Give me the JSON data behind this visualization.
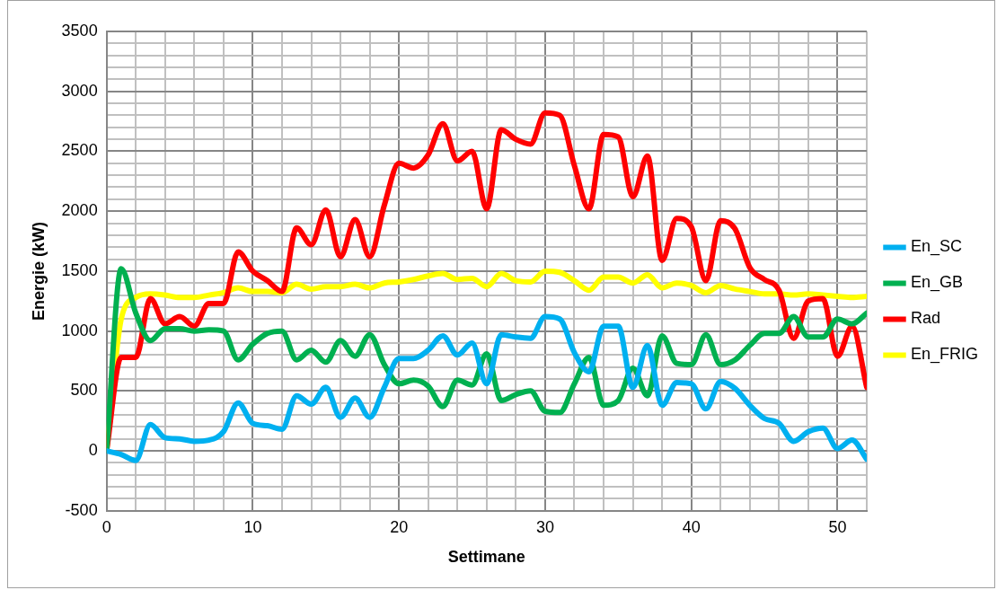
{
  "chart_data": {
    "type": "line",
    "xlabel": "Settimane",
    "ylabel": "Energie (kW)",
    "x": [
      0,
      1,
      2,
      3,
      4,
      5,
      6,
      7,
      8,
      9,
      10,
      11,
      12,
      13,
      14,
      15,
      16,
      17,
      18,
      19,
      20,
      21,
      22,
      23,
      24,
      25,
      26,
      27,
      28,
      29,
      30,
      31,
      32,
      33,
      34,
      35,
      36,
      37,
      38,
      39,
      40,
      41,
      42,
      43,
      44,
      45,
      46,
      47,
      48,
      49,
      50,
      51,
      52
    ],
    "xlim": [
      0,
      52
    ],
    "xticks": [
      0,
      {
        "value": 2,
        "label": null
      },
      {
        "value": 4,
        "label": null
      },
      {
        "value": 6,
        "label": null
      },
      {
        "value": 8,
        "label": null
      },
      10,
      {
        "value": 12,
        "label": null
      },
      {
        "value": 14,
        "label": null
      },
      {
        "value": 16,
        "label": null
      },
      {
        "value": 18,
        "label": null
      },
      20,
      {
        "value": 22,
        "label": null
      },
      {
        "value": 24,
        "label": null
      },
      {
        "value": 26,
        "label": null
      },
      {
        "value": 28,
        "label": null
      },
      30,
      {
        "value": 32,
        "label": null
      },
      {
        "value": 34,
        "label": null
      },
      {
        "value": 36,
        "label": null
      },
      {
        "value": 38,
        "label": null
      },
      40,
      {
        "value": 42,
        "label": null
      },
      {
        "value": 44,
        "label": null
      },
      {
        "value": 46,
        "label": null
      },
      {
        "value": 48,
        "label": null
      },
      50,
      {
        "value": 52,
        "label": null
      }
    ],
    "ylim": [
      -500,
      3500
    ],
    "yticks": [
      -500,
      {
        "value": -400,
        "label": null
      },
      {
        "value": -300,
        "label": null
      },
      {
        "value": -200,
        "label": null
      },
      {
        "value": -100,
        "label": null
      },
      0,
      {
        "value": 100,
        "label": null
      },
      {
        "value": 200,
        "label": null
      },
      {
        "value": 300,
        "label": null
      },
      {
        "value": 400,
        "label": null
      },
      500,
      {
        "value": 600,
        "label": null
      },
      {
        "value": 700,
        "label": null
      },
      {
        "value": 800,
        "label": null
      },
      {
        "value": 900,
        "label": null
      },
      1000,
      {
        "value": 1100,
        "label": null
      },
      {
        "value": 1200,
        "label": null
      },
      {
        "value": 1300,
        "label": null
      },
      {
        "value": 1400,
        "label": null
      },
      1500,
      {
        "value": 1600,
        "label": null
      },
      {
        "value": 1700,
        "label": null
      },
      {
        "value": 1800,
        "label": null
      },
      {
        "value": 1900,
        "label": null
      },
      2000,
      {
        "value": 2100,
        "label": null
      },
      {
        "value": 2200,
        "label": null
      },
      {
        "value": 2300,
        "label": null
      },
      {
        "value": 2400,
        "label": null
      },
      2500,
      {
        "value": 2600,
        "label": null
      },
      {
        "value": 2700,
        "label": null
      },
      {
        "value": 2800,
        "label": null
      },
      {
        "value": 2900,
        "label": null
      },
      3000,
      {
        "value": 3100,
        "label": null
      },
      {
        "value": 3200,
        "label": null
      },
      {
        "value": 3300,
        "label": null
      },
      {
        "value": 3400,
        "label": null
      },
      3500
    ],
    "grid": true,
    "legend": "right",
    "marker": "none",
    "line_style": "solid",
    "series": [
      {
        "name": "En_SC",
        "color": "#00b0f0",
        "values": [
          0,
          -30,
          -80,
          220,
          110,
          100,
          80,
          90,
          160,
          400,
          230,
          210,
          180,
          460,
          390,
          530,
          280,
          440,
          280,
          530,
          770,
          770,
          840,
          960,
          800,
          900,
          560,
          970,
          950,
          940,
          1120,
          1100,
          820,
          660,
          1040,
          1040,
          530,
          880,
          380,
          570,
          560,
          350,
          580,
          520,
          380,
          270,
          230,
          80,
          160,
          190,
          20,
          90,
          -70
        ]
      },
      {
        "name": "En_GB",
        "color": "#00b050",
        "values": [
          0,
          1520,
          1150,
          920,
          1020,
          1020,
          1000,
          1010,
          1000,
          760,
          890,
          980,
          1000,
          760,
          840,
          740,
          920,
          790,
          970,
          720,
          560,
          590,
          540,
          370,
          590,
          550,
          810,
          420,
          470,
          500,
          330,
          320,
          560,
          780,
          380,
          420,
          690,
          460,
          960,
          730,
          720,
          970,
          720,
          760,
          880,
          980,
          980,
          1120,
          950,
          950,
          1100,
          1060,
          1150
        ]
      },
      {
        "name": "Rad",
        "color": "#ff0000",
        "values": [
          0,
          780,
          780,
          1270,
          1060,
          1120,
          1040,
          1230,
          1230,
          1660,
          1500,
          1420,
          1330,
          1860,
          1720,
          2010,
          1620,
          1930,
          1620,
          2050,
          2400,
          2360,
          2470,
          2730,
          2420,
          2500,
          2020,
          2680,
          2600,
          2560,
          2820,
          2800,
          2380,
          2020,
          2640,
          2620,
          2120,
          2460,
          1590,
          1940,
          1870,
          1420,
          1920,
          1850,
          1530,
          1430,
          1340,
          940,
          1250,
          1270,
          790,
          1040,
          530
        ]
      },
      {
        "name": "En_FRIG",
        "color": "#ffff00",
        "values": [
          0,
          1100,
          1280,
          1310,
          1300,
          1280,
          1280,
          1300,
          1320,
          1360,
          1330,
          1330,
          1320,
          1390,
          1350,
          1370,
          1370,
          1390,
          1360,
          1400,
          1410,
          1430,
          1460,
          1480,
          1430,
          1440,
          1370,
          1480,
          1420,
          1410,
          1500,
          1490,
          1420,
          1340,
          1450,
          1450,
          1400,
          1470,
          1360,
          1400,
          1380,
          1320,
          1380,
          1350,
          1330,
          1310,
          1310,
          1300,
          1310,
          1300,
          1290,
          1280,
          1290
        ]
      }
    ]
  }
}
